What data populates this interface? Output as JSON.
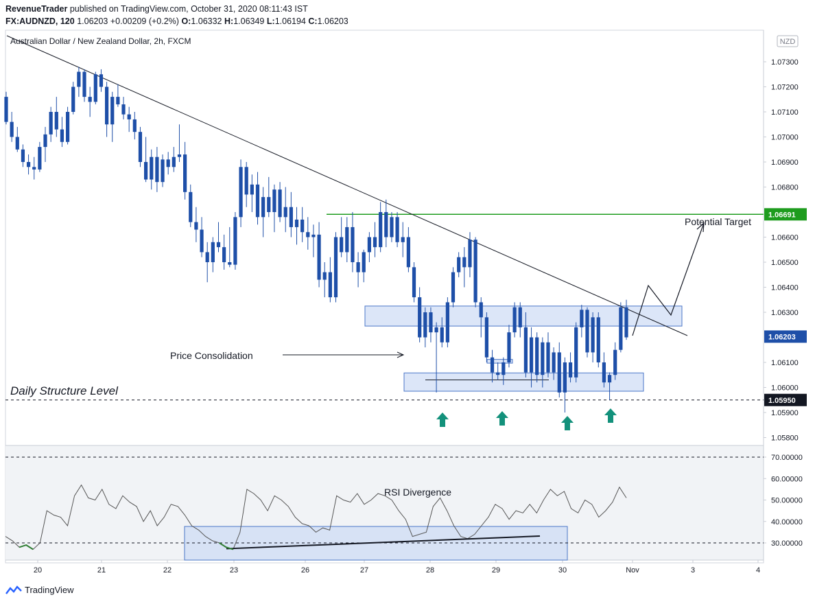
{
  "header": {
    "publisher": "RevenueTrader",
    "published_text": "published on TradingView.com, October 31, 2020 08:11:43 IST",
    "symbol": "FX:AUDNZD, 120",
    "last": "1.06203",
    "change": "+0.00209 (+0.2%)",
    "o_label": "O:",
    "o": "1.06332",
    "h_label": "H:",
    "h": "1.06349",
    "l_label": "L:",
    "l": "1.06194",
    "c_label": "C:",
    "c": "1.06203"
  },
  "legend_title": "Australian Dollar / New Zealand Dollar, 2h, FXCM",
  "currency_badge": "NZD",
  "footer": {
    "brand": "TradingView"
  },
  "colors": {
    "candle": "#1e4fa8",
    "green_level": "#1e9c1e",
    "zone_fill": "#c9d9f5",
    "zone_border": "#4a76c7",
    "arrow": "#13917b",
    "rsi_bg": "#f1f3f6"
  },
  "chart_data": [
    {
      "type": "candlestick",
      "title": "Australian Dollar / New Zealand Dollar, 2h, FXCM",
      "y_ticks": [
        "1.07300",
        "1.07200",
        "1.07100",
        "1.07000",
        "1.06900",
        "1.06800",
        "1.06600",
        "1.06500",
        "1.06400",
        "1.06300",
        "1.06100",
        "1.06000",
        "1.05900",
        "1.05800"
      ],
      "x_ticks": [
        "20",
        "21",
        "22",
        "23",
        "26",
        "27",
        "28",
        "29",
        "30",
        "Nov",
        "3",
        "4"
      ],
      "ylim": [
        1.0575,
        1.0745
      ],
      "price_labels": {
        "target": "1.06691",
        "current": "1.06203",
        "structure": "1.05950"
      },
      "levels": {
        "target": 1.06691,
        "structure": 1.0595,
        "current": 1.06203
      },
      "candles": [
        [
          1.0716,
          1.0718,
          1.0705,
          1.0706
        ],
        [
          1.0706,
          1.071,
          1.0698,
          1.07
        ],
        [
          1.07,
          1.0704,
          1.0694,
          1.0695
        ],
        [
          1.0695,
          1.0697,
          1.0688,
          1.069
        ],
        [
          1.069,
          1.0693,
          1.0685,
          1.0688
        ],
        [
          1.0688,
          1.0692,
          1.0683,
          1.0687
        ],
        [
          1.0687,
          1.0698,
          1.0686,
          1.0696
        ],
        [
          1.0696,
          1.0704,
          1.069,
          1.0701
        ],
        [
          1.0701,
          1.0712,
          1.0698,
          1.071
        ],
        [
          1.071,
          1.0716,
          1.07,
          1.0703
        ],
        [
          1.0703,
          1.0708,
          1.0696,
          1.0698
        ],
        [
          1.0698,
          1.0712,
          1.0697,
          1.071
        ],
        [
          1.071,
          1.0722,
          1.0709,
          1.072
        ],
        [
          1.072,
          1.0728,
          1.0716,
          1.0726
        ],
        [
          1.0726,
          1.0727,
          1.0714,
          1.0716
        ],
        [
          1.0716,
          1.072,
          1.0708,
          1.0714
        ],
        [
          1.0714,
          1.0726,
          1.0713,
          1.0725
        ],
        [
          1.0725,
          1.0727,
          1.0718,
          1.072
        ],
        [
          1.072,
          1.0722,
          1.07,
          1.0705
        ],
        [
          1.0705,
          1.0718,
          1.0698,
          1.0716
        ],
        [
          1.0716,
          1.0721,
          1.0712,
          1.0713
        ],
        [
          1.0713,
          1.0716,
          1.0707,
          1.0709
        ],
        [
          1.0709,
          1.0712,
          1.0702,
          1.0707
        ],
        [
          1.0707,
          1.071,
          1.0699,
          1.0702
        ],
        [
          1.0702,
          1.0704,
          1.0688,
          1.069
        ],
        [
          1.069,
          1.07,
          1.0682,
          1.0683
        ],
        [
          1.0683,
          1.0695,
          1.0679,
          1.0692
        ],
        [
          1.0692,
          1.0696,
          1.0678,
          1.0682
        ],
        [
          1.0682,
          1.0693,
          1.068,
          1.0691
        ],
        [
          1.0691,
          1.0694,
          1.0685,
          1.0688
        ],
        [
          1.0688,
          1.0696,
          1.0686,
          1.0692
        ],
        [
          1.0692,
          1.0705,
          1.069,
          1.0693
        ],
        [
          1.0693,
          1.0698,
          1.0675,
          1.0678
        ],
        [
          1.0678,
          1.0681,
          1.0664,
          1.0666
        ],
        [
          1.0666,
          1.0672,
          1.0658,
          1.0663
        ],
        [
          1.0663,
          1.0668,
          1.0652,
          1.0654
        ],
        [
          1.0654,
          1.0658,
          1.0642,
          1.065
        ],
        [
          1.065,
          1.066,
          1.0646,
          1.0658
        ],
        [
          1.0658,
          1.0666,
          1.0654,
          1.0656
        ],
        [
          1.0656,
          1.0661,
          1.0647,
          1.065
        ],
        [
          1.065,
          1.0664,
          1.0648,
          1.0649
        ],
        [
          1.0649,
          1.067,
          1.0647,
          1.0668
        ],
        [
          1.0668,
          1.0691,
          1.0664,
          1.0688
        ],
        [
          1.0688,
          1.069,
          1.0672,
          1.0677
        ],
        [
          1.0677,
          1.0685,
          1.067,
          1.0681
        ],
        [
          1.0681,
          1.0686,
          1.0665,
          1.0668
        ],
        [
          1.0668,
          1.068,
          1.066,
          1.0676
        ],
        [
          1.0676,
          1.0684,
          1.0668,
          1.067
        ],
        [
          1.067,
          1.0681,
          1.0662,
          1.0679
        ],
        [
          1.0679,
          1.0682,
          1.0666,
          1.0668
        ],
        [
          1.0668,
          1.068,
          1.0662,
          1.0672
        ],
        [
          1.0672,
          1.0678,
          1.066,
          1.0664
        ],
        [
          1.0664,
          1.0672,
          1.0657,
          1.0667
        ],
        [
          1.0667,
          1.0672,
          1.0658,
          1.0662
        ],
        [
          1.0662,
          1.0668,
          1.0655,
          1.066
        ],
        [
          1.066,
          1.0665,
          1.0652,
          1.0661
        ],
        [
          1.0661,
          1.0666,
          1.064,
          1.0643
        ],
        [
          1.0643,
          1.065,
          1.0636,
          1.0646
        ],
        [
          1.0646,
          1.0652,
          1.0634,
          1.0636
        ],
        [
          1.0636,
          1.0662,
          1.0634,
          1.066
        ],
        [
          1.066,
          1.0668,
          1.0652,
          1.0654
        ],
        [
          1.0654,
          1.0668,
          1.065,
          1.0664
        ],
        [
          1.0664,
          1.067,
          1.0646,
          1.065
        ],
        [
          1.065,
          1.0654,
          1.064,
          1.0646
        ],
        [
          1.0646,
          1.0655,
          1.0642,
          1.0654
        ],
        [
          1.0654,
          1.0662,
          1.065,
          1.066
        ],
        [
          1.066,
          1.0666,
          1.0652,
          1.0656
        ],
        [
          1.0656,
          1.0674,
          1.0654,
          1.067
        ],
        [
          1.067,
          1.0675,
          1.0656,
          1.066
        ],
        [
          1.066,
          1.067,
          1.0658,
          1.0668
        ],
        [
          1.0668,
          1.067,
          1.0656,
          1.0658
        ],
        [
          1.0658,
          1.0666,
          1.0652,
          1.066
        ],
        [
          1.066,
          1.0664,
          1.0646,
          1.0648
        ],
        [
          1.0648,
          1.065,
          1.0634,
          1.0636
        ],
        [
          1.0636,
          1.064,
          1.0618,
          1.062
        ],
        [
          1.062,
          1.0632,
          1.0616,
          1.063
        ],
        [
          1.063,
          1.0632,
          1.0618,
          1.0622
        ],
        [
          1.0622,
          1.0626,
          1.0598,
          1.0624
        ],
        [
          1.0624,
          1.0628,
          1.0616,
          1.0618
        ],
        [
          1.0618,
          1.0636,
          1.0616,
          1.0634
        ],
        [
          1.0634,
          1.0648,
          1.0632,
          1.0646
        ],
        [
          1.0646,
          1.0654,
          1.0644,
          1.0652
        ],
        [
          1.0652,
          1.0656,
          1.064,
          1.0648
        ],
        [
          1.0648,
          1.0662,
          1.0644,
          1.0659
        ],
        [
          1.0659,
          1.066,
          1.0632,
          1.0634
        ],
        [
          1.0634,
          1.0636,
          1.062,
          1.0628
        ],
        [
          1.0628,
          1.063,
          1.061,
          1.0612
        ],
        [
          1.0612,
          1.0615,
          1.0602,
          1.0606
        ],
        [
          1.0606,
          1.061,
          1.0603,
          1.0605
        ],
        [
          1.0605,
          1.0612,
          1.0601,
          1.061
        ],
        [
          1.061,
          1.0625,
          1.0608,
          1.0622
        ],
        [
          1.0622,
          1.0634,
          1.062,
          1.0632
        ],
        [
          1.0632,
          1.0634,
          1.062,
          1.0624
        ],
        [
          1.0624,
          1.063,
          1.0604,
          1.0606
        ],
        [
          1.0606,
          1.0624,
          1.06,
          1.062
        ],
        [
          1.062,
          1.0622,
          1.0602,
          1.0605
        ],
        [
          1.0605,
          1.062,
          1.06,
          1.0618
        ],
        [
          1.0618,
          1.0622,
          1.0604,
          1.0606
        ],
        [
          1.0606,
          1.0616,
          1.0603,
          1.0614
        ],
        [
          1.0614,
          1.0618,
          1.0596,
          1.0598
        ],
        [
          1.0598,
          1.0612,
          1.059,
          1.061
        ],
        [
          1.061,
          1.0614,
          1.0602,
          1.0604
        ],
        [
          1.0604,
          1.0626,
          1.0602,
          1.0624
        ],
        [
          1.0624,
          1.0633,
          1.062,
          1.0631
        ],
        [
          1.0631,
          1.0632,
          1.0612,
          1.0614
        ],
        [
          1.0614,
          1.063,
          1.061,
          1.0628
        ],
        [
          1.0628,
          1.063,
          1.0608,
          1.061
        ],
        [
          1.061,
          1.0614,
          1.06,
          1.0602
        ],
        [
          1.0602,
          1.0606,
          1.0595,
          1.0605
        ],
        [
          1.0605,
          1.0618,
          1.0603,
          1.0615
        ],
        [
          1.0615,
          1.0634,
          1.0614,
          1.0632
        ],
        [
          1.0632,
          1.0635,
          1.0619,
          1.062
        ]
      ]
    },
    {
      "type": "line",
      "name": "RSI",
      "y_ticks": [
        "70.00000",
        "60.00000",
        "50.00000",
        "40.00000",
        "30.00000"
      ],
      "ylim": [
        22,
        74
      ],
      "levels": [
        70,
        30
      ],
      "values": [
        33,
        31,
        28,
        29,
        27,
        30,
        45,
        43,
        42,
        38,
        52,
        57,
        51,
        50,
        55,
        48,
        46,
        52,
        49,
        47,
        40,
        45,
        38,
        42,
        48,
        47,
        43,
        38,
        36,
        33,
        31,
        30,
        28,
        27,
        35,
        55,
        53,
        50,
        45,
        52,
        50,
        47,
        42,
        39,
        38,
        35,
        37,
        36,
        52,
        50,
        49,
        53,
        48,
        50,
        53,
        52,
        50,
        45,
        41,
        33,
        34,
        35,
        47,
        51,
        45,
        38,
        33,
        32,
        34,
        38,
        42,
        48,
        46,
        41,
        45,
        44,
        48,
        44,
        50,
        55,
        52,
        54,
        46,
        44,
        50,
        48,
        42,
        45,
        49,
        56,
        51
      ]
    }
  ],
  "annotations": {
    "price_consolidation": "Price Consolidation",
    "daily_structure": "Daily Structure Level",
    "potential_target": "Potential Target",
    "rsi_divergence": "RSI Divergence"
  }
}
